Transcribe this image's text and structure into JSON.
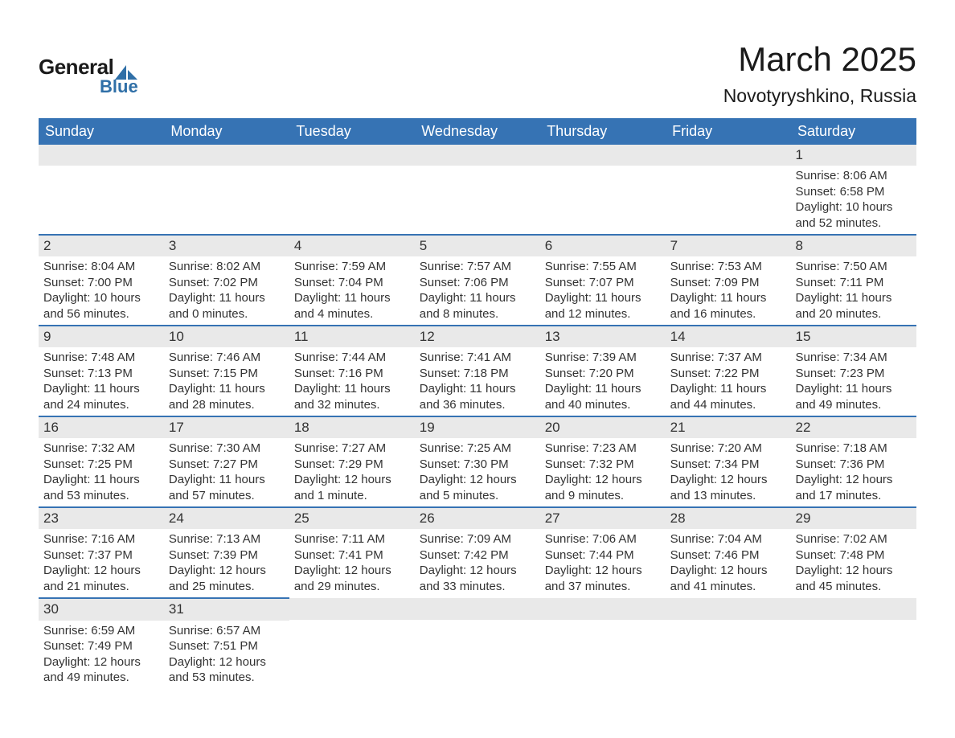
{
  "logo": {
    "text1": "General",
    "text2": "Blue",
    "icon_color": "#2f6fa7"
  },
  "title": "March 2025",
  "location": "Novotyryshkino, Russia",
  "colors": {
    "header_bg": "#3673b4",
    "header_text": "#ffffff",
    "daybar_bg": "#e9e9e9",
    "text": "#333333",
    "row_border": "#3673b4"
  },
  "weekdays": [
    "Sunday",
    "Monday",
    "Tuesday",
    "Wednesday",
    "Thursday",
    "Friday",
    "Saturday"
  ],
  "weeks": [
    [
      null,
      null,
      null,
      null,
      null,
      null,
      {
        "n": "1",
        "sr": "Sunrise: 8:06 AM",
        "ss": "Sunset: 6:58 PM",
        "dl": "Daylight: 10 hours and 52 minutes."
      }
    ],
    [
      {
        "n": "2",
        "sr": "Sunrise: 8:04 AM",
        "ss": "Sunset: 7:00 PM",
        "dl": "Daylight: 10 hours and 56 minutes."
      },
      {
        "n": "3",
        "sr": "Sunrise: 8:02 AM",
        "ss": "Sunset: 7:02 PM",
        "dl": "Daylight: 11 hours and 0 minutes."
      },
      {
        "n": "4",
        "sr": "Sunrise: 7:59 AM",
        "ss": "Sunset: 7:04 PM",
        "dl": "Daylight: 11 hours and 4 minutes."
      },
      {
        "n": "5",
        "sr": "Sunrise: 7:57 AM",
        "ss": "Sunset: 7:06 PM",
        "dl": "Daylight: 11 hours and 8 minutes."
      },
      {
        "n": "6",
        "sr": "Sunrise: 7:55 AM",
        "ss": "Sunset: 7:07 PM",
        "dl": "Daylight: 11 hours and 12 minutes."
      },
      {
        "n": "7",
        "sr": "Sunrise: 7:53 AM",
        "ss": "Sunset: 7:09 PM",
        "dl": "Daylight: 11 hours and 16 minutes."
      },
      {
        "n": "8",
        "sr": "Sunrise: 7:50 AM",
        "ss": "Sunset: 7:11 PM",
        "dl": "Daylight: 11 hours and 20 minutes."
      }
    ],
    [
      {
        "n": "9",
        "sr": "Sunrise: 7:48 AM",
        "ss": "Sunset: 7:13 PM",
        "dl": "Daylight: 11 hours and 24 minutes."
      },
      {
        "n": "10",
        "sr": "Sunrise: 7:46 AM",
        "ss": "Sunset: 7:15 PM",
        "dl": "Daylight: 11 hours and 28 minutes."
      },
      {
        "n": "11",
        "sr": "Sunrise: 7:44 AM",
        "ss": "Sunset: 7:16 PM",
        "dl": "Daylight: 11 hours and 32 minutes."
      },
      {
        "n": "12",
        "sr": "Sunrise: 7:41 AM",
        "ss": "Sunset: 7:18 PM",
        "dl": "Daylight: 11 hours and 36 minutes."
      },
      {
        "n": "13",
        "sr": "Sunrise: 7:39 AM",
        "ss": "Sunset: 7:20 PM",
        "dl": "Daylight: 11 hours and 40 minutes."
      },
      {
        "n": "14",
        "sr": "Sunrise: 7:37 AM",
        "ss": "Sunset: 7:22 PM",
        "dl": "Daylight: 11 hours and 44 minutes."
      },
      {
        "n": "15",
        "sr": "Sunrise: 7:34 AM",
        "ss": "Sunset: 7:23 PM",
        "dl": "Daylight: 11 hours and 49 minutes."
      }
    ],
    [
      {
        "n": "16",
        "sr": "Sunrise: 7:32 AM",
        "ss": "Sunset: 7:25 PM",
        "dl": "Daylight: 11 hours and 53 minutes."
      },
      {
        "n": "17",
        "sr": "Sunrise: 7:30 AM",
        "ss": "Sunset: 7:27 PM",
        "dl": "Daylight: 11 hours and 57 minutes."
      },
      {
        "n": "18",
        "sr": "Sunrise: 7:27 AM",
        "ss": "Sunset: 7:29 PM",
        "dl": "Daylight: 12 hours and 1 minute."
      },
      {
        "n": "19",
        "sr": "Sunrise: 7:25 AM",
        "ss": "Sunset: 7:30 PM",
        "dl": "Daylight: 12 hours and 5 minutes."
      },
      {
        "n": "20",
        "sr": "Sunrise: 7:23 AM",
        "ss": "Sunset: 7:32 PM",
        "dl": "Daylight: 12 hours and 9 minutes."
      },
      {
        "n": "21",
        "sr": "Sunrise: 7:20 AM",
        "ss": "Sunset: 7:34 PM",
        "dl": "Daylight: 12 hours and 13 minutes."
      },
      {
        "n": "22",
        "sr": "Sunrise: 7:18 AM",
        "ss": "Sunset: 7:36 PM",
        "dl": "Daylight: 12 hours and 17 minutes."
      }
    ],
    [
      {
        "n": "23",
        "sr": "Sunrise: 7:16 AM",
        "ss": "Sunset: 7:37 PM",
        "dl": "Daylight: 12 hours and 21 minutes."
      },
      {
        "n": "24",
        "sr": "Sunrise: 7:13 AM",
        "ss": "Sunset: 7:39 PM",
        "dl": "Daylight: 12 hours and 25 minutes."
      },
      {
        "n": "25",
        "sr": "Sunrise: 7:11 AM",
        "ss": "Sunset: 7:41 PM",
        "dl": "Daylight: 12 hours and 29 minutes."
      },
      {
        "n": "26",
        "sr": "Sunrise: 7:09 AM",
        "ss": "Sunset: 7:42 PM",
        "dl": "Daylight: 12 hours and 33 minutes."
      },
      {
        "n": "27",
        "sr": "Sunrise: 7:06 AM",
        "ss": "Sunset: 7:44 PM",
        "dl": "Daylight: 12 hours and 37 minutes."
      },
      {
        "n": "28",
        "sr": "Sunrise: 7:04 AM",
        "ss": "Sunset: 7:46 PM",
        "dl": "Daylight: 12 hours and 41 minutes."
      },
      {
        "n": "29",
        "sr": "Sunrise: 7:02 AM",
        "ss": "Sunset: 7:48 PM",
        "dl": "Daylight: 12 hours and 45 minutes."
      }
    ],
    [
      {
        "n": "30",
        "sr": "Sunrise: 6:59 AM",
        "ss": "Sunset: 7:49 PM",
        "dl": "Daylight: 12 hours and 49 minutes."
      },
      {
        "n": "31",
        "sr": "Sunrise: 6:57 AM",
        "ss": "Sunset: 7:51 PM",
        "dl": "Daylight: 12 hours and 53 minutes."
      },
      null,
      null,
      null,
      null,
      null
    ]
  ]
}
